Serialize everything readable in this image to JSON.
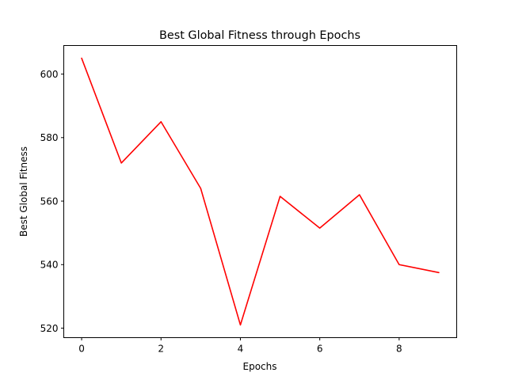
{
  "colors": {
    "line": "#ff0000"
  },
  "chart_data": {
    "type": "line",
    "title": "Best Global Fitness through Epochs",
    "xlabel": "Epochs",
    "ylabel": "Best Global Fitness",
    "xlim": [
      -0.45,
      9.45
    ],
    "ylim": [
      517.0,
      609.0
    ],
    "xticks": [
      0,
      2,
      4,
      6,
      8
    ],
    "yticks": [
      520,
      540,
      560,
      580,
      600
    ],
    "grid": false,
    "series": [
      {
        "x": [
          0,
          1,
          2,
          3,
          4,
          5,
          6,
          7,
          8,
          9
        ],
        "values": [
          605,
          572,
          585,
          564,
          521,
          561.5,
          551.5,
          562,
          540,
          537.5
        ]
      }
    ]
  }
}
